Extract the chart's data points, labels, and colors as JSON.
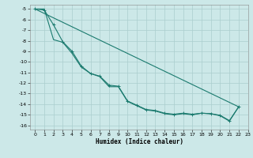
{
  "xlabel": "Humidex (Indice chaleur)",
  "ylabel": "",
  "bg_color": "#cce8e8",
  "grid_color": "#aacece",
  "line_color": "#1a7a6e",
  "xlim": [
    -0.5,
    23
  ],
  "ylim": [
    -16.4,
    -4.6
  ],
  "xticks": [
    0,
    1,
    2,
    3,
    4,
    5,
    6,
    7,
    8,
    9,
    10,
    11,
    12,
    13,
    14,
    15,
    16,
    17,
    18,
    19,
    20,
    21,
    22,
    23
  ],
  "yticks": [
    -5,
    -6,
    -7,
    -8,
    -9,
    -10,
    -11,
    -12,
    -13,
    -14,
    -15,
    -16
  ],
  "line1_x": [
    0,
    1,
    2,
    3,
    4,
    5,
    6,
    7,
    8,
    9,
    10,
    11,
    12,
    13,
    14,
    15,
    16,
    17,
    18,
    19,
    20,
    21,
    22
  ],
  "line1_y": [
    -5.0,
    -5.1,
    -6.5,
    -8.1,
    -9.0,
    -10.4,
    -11.1,
    -11.35,
    -12.2,
    -12.3,
    -13.7,
    -14.1,
    -14.5,
    -14.6,
    -14.85,
    -14.95,
    -14.85,
    -14.95,
    -14.85,
    -14.9,
    -15.05,
    -15.55,
    -14.25
  ],
  "line2_x": [
    0,
    1,
    2,
    3,
    4,
    5,
    6,
    7,
    8,
    9,
    10,
    11,
    12,
    13,
    14,
    15,
    16,
    17,
    18,
    19,
    20,
    21,
    22
  ],
  "line2_y": [
    -5.0,
    -5.0,
    -7.9,
    -8.15,
    -9.2,
    -10.5,
    -11.1,
    -11.4,
    -12.35,
    -12.35,
    -13.75,
    -14.15,
    -14.55,
    -14.65,
    -14.9,
    -15.0,
    -14.9,
    -15.0,
    -14.85,
    -14.9,
    -15.1,
    -15.6,
    -14.25
  ],
  "line3_x": [
    0,
    22
  ],
  "line3_y": [
    -5.0,
    -14.25
  ]
}
